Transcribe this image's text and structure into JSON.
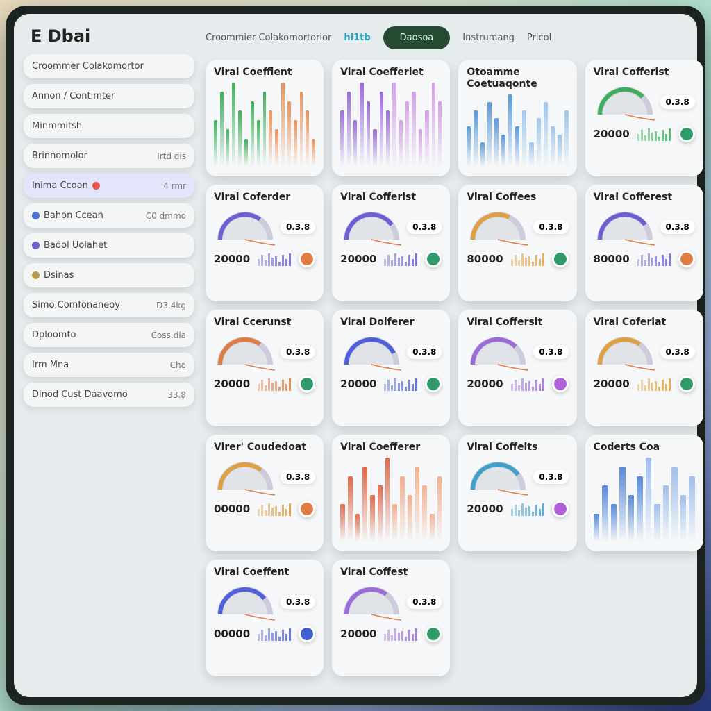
{
  "app": {
    "logo": "E Dbai"
  },
  "topbar": {
    "items": [
      "Croommier Colakomortorior",
      "hi1tb",
      "Instrumang"
    ],
    "button": "Daosoa",
    "filter": "Pricol"
  },
  "sidebar": {
    "items": [
      {
        "label": "Croommer Colakomortor",
        "meta": ""
      },
      {
        "label": "Annon / Contimter",
        "meta": ""
      },
      {
        "label": "Minmmitsh",
        "meta": ""
      },
      {
        "label": "Brinnomolor",
        "meta": "Irtd dis"
      },
      {
        "label": "Inima Ccoan",
        "meta": "4 rmr",
        "selected": true,
        "badge_color": "#e0574a"
      },
      {
        "label": "Bahon Ccean",
        "meta": "C0 dmmo",
        "color": "#4c6fd8"
      },
      {
        "label": "Badol Uolahet",
        "meta": "",
        "color": "#6b63c9"
      },
      {
        "label": "Dsinas",
        "meta": "",
        "color": "#b89a4a"
      },
      {
        "label": "Simo Comfonaneoy",
        "meta": "D3.4kg"
      },
      {
        "label": "Dploomto",
        "meta": "Coss.dla"
      },
      {
        "label": "Irm Mna",
        "meta": "Cho"
      },
      {
        "label": "Dinod Cust Daavomo",
        "meta": "33.8"
      }
    ]
  },
  "cards": [
    {
      "type": "chart",
      "title": "Viral Coeffient",
      "colors": [
        "#3fae5a",
        "#e8925a"
      ],
      "bars": [
        5,
        8,
        4,
        9,
        6,
        3,
        7,
        5,
        8,
        6,
        4,
        9,
        7,
        5,
        8,
        6,
        3
      ]
    },
    {
      "type": "chart",
      "title": "Viral Coefferiet",
      "colors": [
        "#9b6cd8",
        "#d3a0e6"
      ],
      "bars": [
        6,
        8,
        5,
        9,
        7,
        4,
        8,
        6,
        9,
        5,
        7,
        8,
        4,
        6,
        9,
        7
      ]
    },
    {
      "type": "chart",
      "title": "Otoamme Coetuaqonte",
      "colors": [
        "#5a9ad8",
        "#9fc6ec"
      ],
      "bars": [
        5,
        7,
        3,
        8,
        6,
        4,
        9,
        5,
        7,
        3,
        6,
        8,
        5,
        4,
        7
      ]
    },
    {
      "type": "gauge",
      "title": "Viral Cofferist",
      "value": "0.3.8",
      "count": "20000",
      "color": "#3fae5a",
      "btn": "#2f9a6a",
      "gauge": 0.75
    },
    {
      "type": "gauge",
      "title": "Viral Coferder",
      "value": "0.3.8",
      "count": "20000",
      "color": "#6a5fd0",
      "btn": "#e07d44",
      "gauge": 0.7
    },
    {
      "type": "gauge",
      "title": "Viral Cofferist",
      "value": "0.3.8",
      "count": "20000",
      "color": "#6a5fd0",
      "btn": "#2f9a6a",
      "gauge": 0.8
    },
    {
      "type": "gauge",
      "title": "Viral Coffees",
      "value": "0.3.8",
      "count": "80000",
      "color": "#e0a040",
      "btn": "#2f9a6a",
      "gauge": 0.65
    },
    {
      "type": "gauge",
      "title": "Viral Cofferest",
      "value": "0.3.8",
      "count": "80000",
      "color": "#6a5fd0",
      "btn": "#e07d44",
      "gauge": 0.8
    },
    {
      "type": "gauge",
      "title": "Viral Ccerunst",
      "value": "0.3.8",
      "count": "20000",
      "color": "#e07d44",
      "btn": "#2f9a6a",
      "gauge": 0.7
    },
    {
      "type": "gauge",
      "title": "Viral Dolferer",
      "value": "0.3.8",
      "count": "20000",
      "color": "#5060d8",
      "btn": "#2f9a6a",
      "gauge": 0.85
    },
    {
      "type": "gauge",
      "title": "Viral Coffersit",
      "value": "0.3.8",
      "count": "20000",
      "color": "#9b6cd8",
      "btn": "#b060d8",
      "gauge": 0.75
    },
    {
      "type": "gauge",
      "title": "Viral Coferiat",
      "value": "0.3.8",
      "count": "20000",
      "color": "#e0a040",
      "btn": "#2f9a6a",
      "gauge": 0.7
    },
    {
      "type": "gauge",
      "title": "Virer' Coudedoat",
      "value": "0.3.8",
      "count": "00000",
      "color": "#e0a040",
      "btn": "#e07d44",
      "gauge": 0.72
    },
    {
      "type": "chart",
      "title": "Viral Coefferer",
      "colors": [
        "#e06a4a",
        "#f2b090"
      ],
      "bars": [
        4,
        7,
        3,
        8,
        5,
        6,
        9,
        4,
        7,
        5,
        8,
        6,
        3,
        7
      ]
    },
    {
      "type": "gauge",
      "title": "Viral Coffeits",
      "value": "0.3.8",
      "count": "20000",
      "color": "#40a0c8",
      "btn": "#b060d8",
      "gauge": 0.8
    },
    {
      "type": "chart",
      "title": "Coderts Coa",
      "colors": [
        "#5a8ad8",
        "#a0c0ec"
      ],
      "bars": [
        3,
        6,
        4,
        8,
        5,
        7,
        9,
        4,
        6,
        8,
        5,
        7
      ]
    },
    {
      "type": "gauge",
      "title": "Viral Coeffent",
      "value": "0.3.8",
      "count": "00000",
      "color": "#5060d8",
      "btn": "#4060d0",
      "gauge": 0.78
    },
    {
      "type": "gauge",
      "title": "Viral Coffest",
      "value": "0.3.8",
      "count": "20000",
      "color": "#9b6cd8",
      "btn": "#2f9a6a",
      "gauge": 0.7
    }
  ]
}
